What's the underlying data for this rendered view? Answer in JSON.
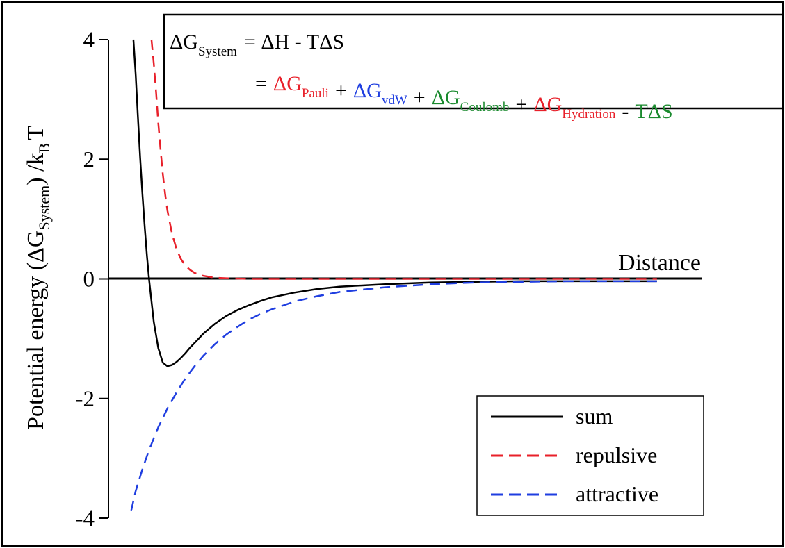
{
  "chart_data": {
    "type": "line",
    "xlabel": "Distance",
    "ylabel": {
      "prefix": "Potential energy (ΔG",
      "prefix_sub": "System",
      "suffix": ") /k",
      "suffix_sub": "B",
      "tail": "T"
    },
    "ylim": [
      -4,
      4
    ],
    "xlim": [
      0.78,
      3.4
    ],
    "yticks": [
      {
        "value": 4,
        "label": "4"
      },
      {
        "value": 2,
        "label": "2"
      },
      {
        "value": 0,
        "label": "0"
      },
      {
        "value": -2,
        "label": "-2"
      },
      {
        "value": -4,
        "label": "-4"
      }
    ],
    "grid": false,
    "legend_position": "bottom-right",
    "series": [
      {
        "name": "sum",
        "color": "#000000",
        "dash": "solid",
        "x": [
          0.89,
          0.9,
          0.91,
          0.92,
          0.93,
          0.94,
          0.95,
          0.96,
          0.98,
          1.0,
          1.02,
          1.04,
          1.06,
          1.08,
          1.1,
          1.12,
          1.14,
          1.16,
          1.2,
          1.25,
          1.3,
          1.35,
          1.4,
          1.45,
          1.5,
          1.6,
          1.7,
          1.8,
          1.9,
          2.0,
          2.2,
          2.4,
          2.6,
          2.8,
          3.0,
          3.2
        ],
        "y": [
          4.0,
          3.43,
          2.7,
          2.02,
          1.41,
          0.86,
          0.38,
          -0.04,
          -0.72,
          -1.16,
          -1.4,
          -1.46,
          -1.44,
          -1.39,
          -1.32,
          -1.24,
          -1.15,
          -1.07,
          -0.91,
          -0.75,
          -0.62,
          -0.52,
          -0.44,
          -0.37,
          -0.31,
          -0.23,
          -0.17,
          -0.13,
          -0.11,
          -0.09,
          -0.06,
          -0.05,
          -0.04,
          -0.04,
          -0.04,
          -0.04
        ]
      },
      {
        "name": "repulsive",
        "color": "#e8202a",
        "dash": "dashed",
        "x": [
          0.97,
          0.98,
          0.99,
          1.0,
          1.01,
          1.02,
          1.03,
          1.04,
          1.06,
          1.08,
          1.1,
          1.12,
          1.14,
          1.16,
          1.18,
          1.2,
          1.25,
          1.3,
          1.4,
          1.6,
          2.0,
          2.6,
          3.2
        ],
        "y": [
          4.0,
          3.6,
          3.12,
          2.6,
          2.15,
          1.75,
          1.42,
          1.15,
          0.76,
          0.5,
          0.33,
          0.22,
          0.15,
          0.1,
          0.07,
          0.05,
          0.02,
          0.01,
          0.0,
          0.0,
          0.0,
          0.0,
          0.0
        ]
      },
      {
        "name": "attractive",
        "color": "#1f3ee0",
        "dash": "dashed",
        "x": [
          0.88,
          0.9,
          0.93,
          0.96,
          1.0,
          1.04,
          1.08,
          1.12,
          1.16,
          1.2,
          1.25,
          1.3,
          1.35,
          1.4,
          1.45,
          1.5,
          1.6,
          1.7,
          1.8,
          2.0,
          2.2,
          2.4,
          2.6,
          2.8,
          3.0,
          3.2
        ],
        "y": [
          -3.88,
          -3.55,
          -3.18,
          -2.85,
          -2.48,
          -2.17,
          -1.9,
          -1.66,
          -1.46,
          -1.28,
          -1.09,
          -0.93,
          -0.8,
          -0.68,
          -0.59,
          -0.51,
          -0.38,
          -0.29,
          -0.22,
          -0.14,
          -0.09,
          -0.06,
          -0.05,
          -0.04,
          -0.04,
          -0.04
        ]
      }
    ],
    "equation": {
      "line1": {
        "lhs": "ΔG",
        "lhs_sub": "System",
        "rhs": "= ΔH - TΔS"
      },
      "line2": {
        "eq": "=",
        "terms": [
          {
            "main": "ΔG",
            "sub": "Pauli",
            "color": "#e8202a"
          },
          {
            "op": "+"
          },
          {
            "main": "ΔG",
            "sub": "vdW",
            "color": "#1f3ee0"
          },
          {
            "op": "+"
          },
          {
            "main": "ΔG",
            "sub": "Coulomb",
            "color": "#1a8a2e"
          },
          {
            "op": "+"
          },
          {
            "main": "ΔG",
            "sub": "Hydration",
            "color": "#e8202a"
          },
          {
            "op": "-"
          },
          {
            "main": "TΔS",
            "sub": "",
            "color": "#1a8a2e"
          }
        ]
      }
    }
  }
}
